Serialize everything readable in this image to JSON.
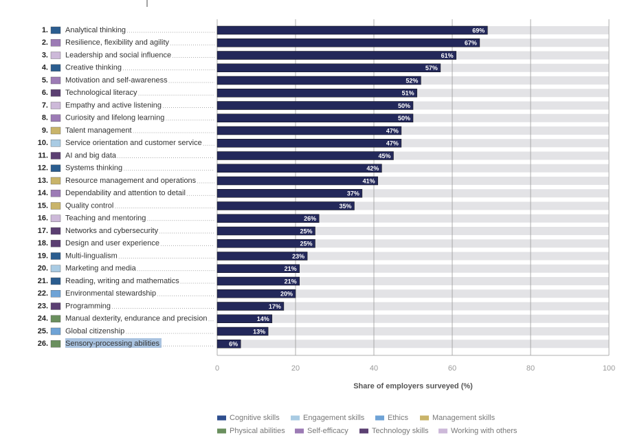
{
  "chart_data": {
    "type": "bar",
    "orientation": "horizontal",
    "ranks": [
      "1.",
      "2.",
      "3.",
      "4.",
      "5.",
      "6.",
      "7.",
      "8.",
      "9.",
      "10.",
      "11.",
      "12.",
      "13.",
      "14.",
      "15.",
      "16.",
      "17.",
      "18.",
      "19.",
      "20.",
      "21.",
      "22.",
      "23.",
      "24.",
      "25.",
      "26."
    ],
    "categories": [
      "Analytical thinking",
      "Resilience, flexibility and agility",
      "Leadership and social influence",
      "Creative thinking",
      "Motivation and self-awareness",
      "Technological literacy",
      "Empathy and active listening",
      "Curiosity and lifelong learning",
      "Talent management",
      "Service orientation and customer service",
      "AI and big data",
      "Systems thinking",
      "Resource management and operations",
      "Dependability and attention to detail",
      "Quality control",
      "Teaching and mentoring",
      "Networks and cybersecurity",
      "Design and user experience",
      "Multi-lingualism",
      "Marketing and media",
      "Reading, writing and mathematics",
      "Environmental stewardship",
      "Programming",
      "Manual dexterity, endurance and precision",
      "Global citizenship",
      "Sensory-processing abilities"
    ],
    "category_colors": [
      "#2b5d8f",
      "#9c7bb5",
      "#cdb9d9",
      "#2b5d8f",
      "#9c7bb5",
      "#5b3f72",
      "#cdb9d9",
      "#9c7bb5",
      "#c9b46a",
      "#a9cbe3",
      "#5b3f72",
      "#2b5d8f",
      "#c9b46a",
      "#9c7bb5",
      "#c9b46a",
      "#cdb9d9",
      "#5b3f72",
      "#5b3f72",
      "#2b5d8f",
      "#a9cbe3",
      "#2b5d8f",
      "#6fa3d6",
      "#5b3f72",
      "#6a8f5e",
      "#6fa3d6",
      "#6a8f5e"
    ],
    "values": [
      69,
      67,
      61,
      57,
      52,
      51,
      50,
      50,
      47,
      47,
      45,
      42,
      41,
      37,
      35,
      26,
      25,
      25,
      23,
      21,
      21,
      20,
      17,
      14,
      13,
      6
    ],
    "value_labels": [
      "69%",
      "67%",
      "61%",
      "57%",
      "52%",
      "51%",
      "50%",
      "50%",
      "47%",
      "47%",
      "45%",
      "42%",
      "41%",
      "37%",
      "35%",
      "26%",
      "25%",
      "25%",
      "23%",
      "21%",
      "21%",
      "20%",
      "17%",
      "14%",
      "13%",
      "6%"
    ],
    "color": "#23285a",
    "track_color": "#e3e3e6",
    "xlim": [
      0,
      100
    ],
    "xticks": [
      0,
      20,
      40,
      60,
      80,
      100
    ],
    "grid": true,
    "xlabel": "Share of employers surveyed (%)",
    "legend": [
      {
        "name": "Cognitive skills",
        "color": "#2e4e8e"
      },
      {
        "name": "Engagement skills",
        "color": "#a9cbe3"
      },
      {
        "name": "Ethics",
        "color": "#6fa3d6"
      },
      {
        "name": "Management skills",
        "color": "#c9b46a"
      },
      {
        "name": "Physical abilities",
        "color": "#6a8f5e"
      },
      {
        "name": "Self-efficacy",
        "color": "#9c7bb5"
      },
      {
        "name": "Technology skills",
        "color": "#5b3f72"
      },
      {
        "name": "Working with others",
        "color": "#cdb9d9"
      }
    ]
  }
}
